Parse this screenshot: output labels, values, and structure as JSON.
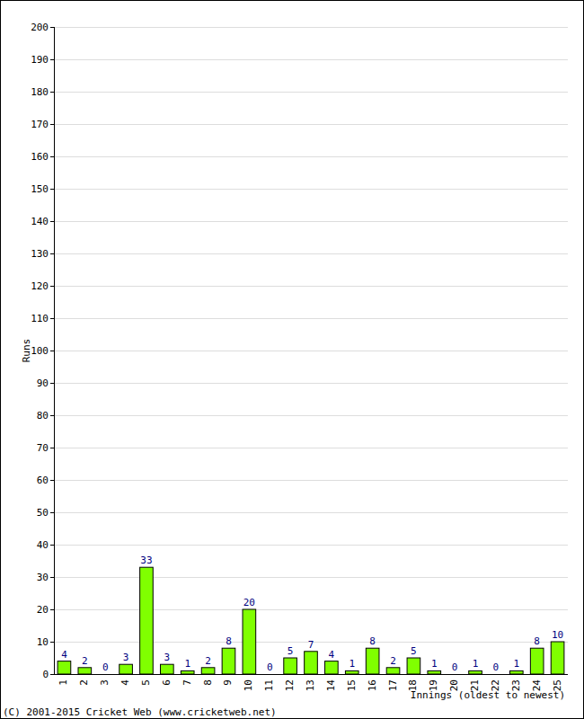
{
  "chart_data": {
    "type": "bar",
    "y_label": "Runs",
    "x_label": "Innings (oldest to newest)",
    "footnote": "(C) 2001-2015 Cricket Web (www.cricketweb.net)",
    "categories": [
      "1",
      "2",
      "3",
      "4",
      "5",
      "6",
      "7",
      "8",
      "9",
      "10",
      "11",
      "12",
      "13",
      "14",
      "15",
      "16",
      "17",
      "18",
      "19",
      "20",
      "21",
      "22",
      "23",
      "24",
      "25"
    ],
    "values": [
      4,
      2,
      0,
      3,
      33,
      3,
      1,
      2,
      8,
      20,
      0,
      5,
      7,
      4,
      1,
      8,
      2,
      5,
      1,
      0,
      1,
      0,
      1,
      8,
      10
    ],
    "color": "#80ff00",
    "ylim": [
      0,
      200
    ],
    "yticks": [
      0,
      10,
      20,
      30,
      40,
      50,
      60,
      70,
      80,
      90,
      100,
      110,
      120,
      130,
      140,
      150,
      160,
      170,
      180,
      190,
      200
    ],
    "grid": true,
    "data_labels": true
  }
}
